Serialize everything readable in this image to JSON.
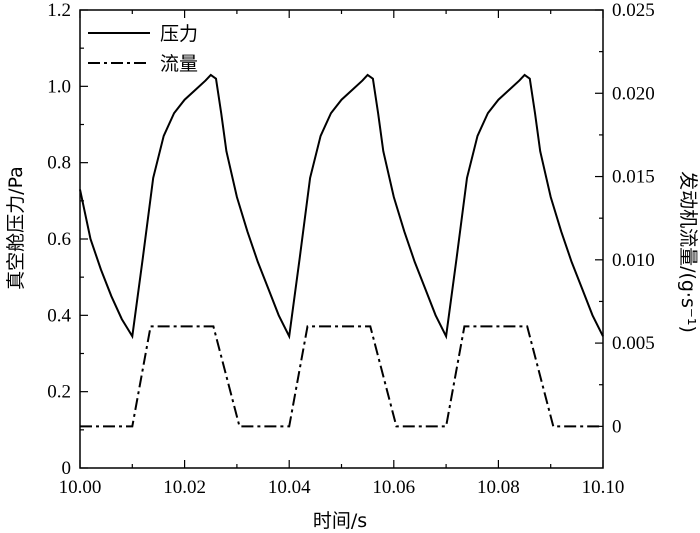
{
  "chart_data": {
    "type": "line",
    "xlabel": "时间/s",
    "ylabel_left": "真空舱压力/Pa",
    "ylabel_right": "发动机流量/(g·s⁻¹)",
    "xlim": [
      10.0,
      10.1
    ],
    "ylim_left": [
      0,
      1.2
    ],
    "ylim_right": [
      -0.0025,
      0.025
    ],
    "x_ticks": [
      "10.00",
      "10.02",
      "10.04",
      "10.06",
      "10.08",
      "10.10"
    ],
    "y_left_ticks": [
      "0",
      "0.2",
      "0.4",
      "0.6",
      "0.8",
      "1.0",
      "1.2"
    ],
    "y_right_ticks": [
      "0",
      "0.005",
      "0.010",
      "0.015",
      "0.020",
      "0.025"
    ],
    "grid": false,
    "legend_position": "top-left",
    "series": [
      {
        "name": "压力",
        "axis": "left",
        "style": "solid",
        "points": [
          [
            10.0,
            0.73
          ],
          [
            10.002,
            0.6
          ],
          [
            10.004,
            0.52
          ],
          [
            10.006,
            0.45
          ],
          [
            10.008,
            0.39
          ],
          [
            10.01,
            0.345
          ],
          [
            10.012,
            0.55
          ],
          [
            10.014,
            0.76
          ],
          [
            10.016,
            0.87
          ],
          [
            10.018,
            0.93
          ],
          [
            10.02,
            0.965
          ],
          [
            10.022,
            0.99
          ],
          [
            10.024,
            1.015
          ],
          [
            10.025,
            1.03
          ],
          [
            10.026,
            1.02
          ],
          [
            10.027,
            0.93
          ],
          [
            10.028,
            0.83
          ],
          [
            10.03,
            0.71
          ],
          [
            10.032,
            0.62
          ],
          [
            10.034,
            0.54
          ],
          [
            10.036,
            0.47
          ],
          [
            10.038,
            0.4
          ],
          [
            10.04,
            0.345
          ],
          [
            10.042,
            0.55
          ],
          [
            10.044,
            0.76
          ],
          [
            10.046,
            0.87
          ],
          [
            10.048,
            0.93
          ],
          [
            10.05,
            0.965
          ],
          [
            10.052,
            0.99
          ],
          [
            10.054,
            1.015
          ],
          [
            10.055,
            1.03
          ],
          [
            10.056,
            1.02
          ],
          [
            10.057,
            0.93
          ],
          [
            10.058,
            0.83
          ],
          [
            10.06,
            0.71
          ],
          [
            10.062,
            0.62
          ],
          [
            10.064,
            0.54
          ],
          [
            10.066,
            0.47
          ],
          [
            10.068,
            0.4
          ],
          [
            10.07,
            0.345
          ],
          [
            10.072,
            0.55
          ],
          [
            10.074,
            0.76
          ],
          [
            10.076,
            0.87
          ],
          [
            10.078,
            0.93
          ],
          [
            10.08,
            0.965
          ],
          [
            10.082,
            0.99
          ],
          [
            10.084,
            1.015
          ],
          [
            10.085,
            1.03
          ],
          [
            10.086,
            1.02
          ],
          [
            10.087,
            0.93
          ],
          [
            10.088,
            0.83
          ],
          [
            10.09,
            0.71
          ],
          [
            10.092,
            0.62
          ],
          [
            10.094,
            0.54
          ],
          [
            10.096,
            0.47
          ],
          [
            10.098,
            0.4
          ],
          [
            10.1,
            0.345
          ]
        ]
      },
      {
        "name": "流量",
        "axis": "right",
        "style": "dashdot",
        "points": [
          [
            10.0,
            0
          ],
          [
            10.01,
            0
          ],
          [
            10.0135,
            0.006
          ],
          [
            10.0255,
            0.006
          ],
          [
            10.0305,
            0
          ],
          [
            10.04,
            0
          ],
          [
            10.0435,
            0.006
          ],
          [
            10.0555,
            0.006
          ],
          [
            10.0605,
            0
          ],
          [
            10.07,
            0
          ],
          [
            10.0735,
            0.006
          ],
          [
            10.0855,
            0.006
          ],
          [
            10.0905,
            0
          ],
          [
            10.1,
            0
          ]
        ]
      }
    ]
  }
}
